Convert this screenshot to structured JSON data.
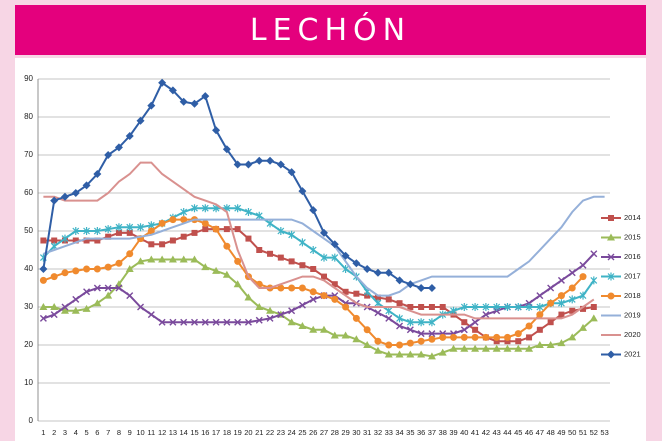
{
  "chart_data": {
    "type": "line",
    "title": "LECHÓN",
    "categories": [
      1,
      2,
      3,
      4,
      5,
      6,
      7,
      8,
      9,
      10,
      11,
      12,
      13,
      14,
      15,
      16,
      17,
      18,
      19,
      20,
      21,
      22,
      23,
      24,
      25,
      26,
      27,
      28,
      29,
      30,
      31,
      32,
      33,
      34,
      35,
      36,
      37,
      38,
      39,
      40,
      41,
      42,
      43,
      44,
      45,
      46,
      47,
      48,
      49,
      50,
      51,
      52,
      53
    ],
    "ylim": [
      0,
      90
    ],
    "yticks": [
      0,
      10,
      20,
      30,
      40,
      50,
      60,
      70,
      80,
      90
    ],
    "grid": true,
    "legend": "right",
    "series": [
      {
        "name": "2014",
        "color": "#c0504d",
        "marker": "square",
        "values": [
          47.5,
          47.5,
          47.5,
          47.5,
          47.5,
          47.5,
          48.5,
          49.5,
          49.5,
          48,
          46.5,
          46.5,
          47.5,
          48.5,
          49.5,
          50.5,
          50.5,
          50.5,
          50.5,
          48,
          45,
          44,
          43,
          42,
          41,
          40,
          38,
          36,
          34,
          33.5,
          33,
          32.5,
          32,
          31,
          30,
          30,
          30,
          30,
          28,
          26,
          24,
          22,
          21,
          21,
          21,
          22,
          24,
          26,
          28,
          29,
          29.5,
          30,
          null
        ]
      },
      {
        "name": "2015",
        "color": "#9bbb59",
        "marker": "triangle",
        "values": [
          30,
          30,
          29,
          29,
          29.5,
          31,
          33,
          36,
          40,
          42,
          42.5,
          42.5,
          42.5,
          42.5,
          42.5,
          40.5,
          39.5,
          38.5,
          36,
          32.5,
          30,
          29,
          28,
          26,
          25,
          24,
          24,
          22.5,
          22.5,
          21.5,
          20,
          18.5,
          17.5,
          17.5,
          17.5,
          17.5,
          17,
          18,
          19,
          19,
          19,
          19,
          19,
          19,
          19,
          19,
          20,
          20,
          20.5,
          22,
          24.5,
          27,
          null
        ]
      },
      {
        "name": "2016",
        "color": "#7a4a9c",
        "marker": "x",
        "values": [
          27,
          28,
          30,
          32,
          34,
          35,
          35,
          35,
          33,
          30,
          28,
          26,
          26,
          26,
          26,
          26,
          26,
          26,
          26,
          26,
          26.5,
          27,
          28,
          29,
          30.5,
          32,
          33,
          33,
          31,
          31,
          30,
          28.5,
          27,
          25,
          24,
          23,
          23,
          23,
          23,
          24,
          26,
          28,
          29,
          30,
          30,
          31,
          33,
          35,
          37,
          39,
          41,
          44,
          null
        ]
      },
      {
        "name": "2017",
        "color": "#3fb3c6",
        "marker": "asterisk",
        "values": [
          43,
          46,
          48,
          50,
          50,
          50,
          50.5,
          51,
          51,
          51,
          51.5,
          52,
          53.5,
          55,
          56,
          56,
          56,
          56,
          56,
          55,
          54,
          52,
          50,
          49,
          47,
          45,
          43,
          43,
          40,
          38,
          34,
          31,
          29,
          27,
          26,
          26,
          26,
          28,
          29,
          30,
          30,
          30,
          30,
          30,
          30,
          30,
          30,
          31,
          31,
          32,
          33,
          37,
          null
        ]
      },
      {
        "name": "2018",
        "color": "#f08a2e",
        "marker": "circle",
        "values": [
          37,
          38,
          39,
          39.5,
          40,
          40,
          40.5,
          41.5,
          44,
          48,
          50,
          52,
          53,
          53,
          53,
          52,
          50.5,
          46,
          42,
          38,
          36,
          35,
          35,
          35,
          35,
          34,
          33,
          32,
          30,
          27,
          24,
          21,
          20,
          20,
          20.5,
          21,
          21.5,
          22,
          22,
          22,
          22,
          22,
          22,
          22,
          23,
          25,
          28,
          31,
          33,
          35,
          38,
          null,
          null
        ]
      },
      {
        "name": "2019",
        "color": "#95b0d9",
        "marker": "none",
        "values": [
          44,
          45,
          46,
          47,
          48,
          48,
          48,
          48,
          48,
          48.5,
          49,
          50,
          51,
          52,
          53,
          53,
          53,
          53,
          53,
          53,
          53,
          53,
          53,
          53,
          52,
          50,
          48,
          46,
          42,
          38,
          35,
          33,
          33,
          34,
          36,
          37,
          38,
          38,
          38,
          38,
          38,
          38,
          38,
          38,
          40,
          42,
          45,
          48,
          51,
          55,
          58,
          59,
          59
        ]
      },
      {
        "name": "2020",
        "color": "#d9918f",
        "marker": "none",
        "values": [
          59,
          59,
          58,
          58,
          58,
          58,
          60,
          63,
          65,
          68,
          68,
          65,
          63,
          61,
          59,
          58,
          57,
          55,
          45,
          38,
          35,
          35,
          36,
          37,
          38,
          38,
          37,
          35,
          33,
          31,
          30,
          30,
          30,
          30,
          29,
          28,
          28,
          28,
          28,
          28,
          27,
          27,
          27,
          27,
          27,
          27,
          27,
          27,
          27,
          28,
          30,
          32,
          null
        ]
      },
      {
        "name": "2021",
        "color": "#2f5ea6",
        "marker": "diamond",
        "values": [
          40,
          58,
          59,
          60,
          62,
          65,
          70,
          72,
          75,
          79,
          83,
          89,
          87,
          84,
          83.5,
          85.5,
          76.5,
          71.5,
          67.5,
          67.5,
          68.5,
          68.5,
          67.5,
          65.5,
          60.5,
          55.5,
          49.5,
          46.5,
          43.5,
          41.5,
          40,
          39,
          39,
          37,
          36,
          35,
          35,
          null,
          null,
          null,
          null,
          null,
          null,
          null,
          null,
          null,
          null,
          null,
          null,
          null,
          null,
          null,
          null
        ]
      }
    ]
  }
}
